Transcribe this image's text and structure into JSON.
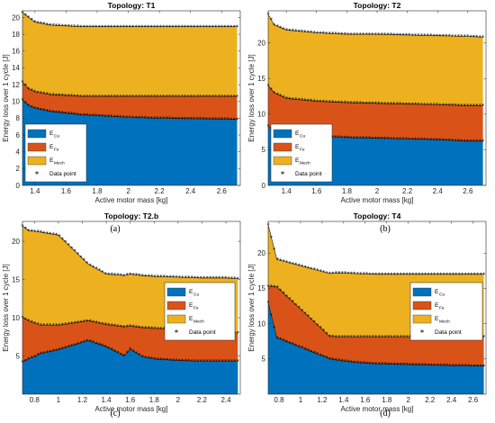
{
  "colors": {
    "cu": "#0072BD",
    "fe": "#D95319",
    "mech": "#EDB120"
  },
  "legend_items": [
    {
      "main": "E",
      "sub": "Cu"
    },
    {
      "main": "E",
      "sub": "Fe"
    },
    {
      "main": "E",
      "sub": "Mech"
    },
    {
      "main": "Data point",
      "sub": ""
    }
  ],
  "chart_data": [
    {
      "type": "area",
      "title": "Topology: T1",
      "caption": "(a)",
      "xlabel": "Active motor mass [kg]",
      "ylabel": "Energy loss over 1 cycle [J]",
      "xlim": [
        1.32,
        2.72
      ],
      "ylim": [
        0,
        20.8
      ],
      "xticks": [
        1.4,
        1.6,
        1.8,
        2,
        2.2,
        2.4,
        2.6
      ],
      "yticks": [
        0,
        2,
        4,
        6,
        8,
        10,
        12,
        14,
        16,
        18,
        20
      ],
      "legend_position": "bottom-left",
      "x": [
        1.32,
        1.36,
        1.4,
        1.5,
        1.6,
        1.7,
        1.8,
        1.9,
        2.0,
        2.2,
        2.4,
        2.6,
        2.7
      ],
      "series": [
        {
          "name": "E_Cu",
          "values": [
            10.2,
            9.5,
            9.2,
            8.8,
            8.6,
            8.4,
            8.3,
            8.2,
            8.1,
            8.0,
            7.95,
            7.9,
            7.85
          ]
        },
        {
          "name": "E_Fe",
          "values": [
            2.1,
            2.0,
            1.95,
            2.0,
            2.1,
            2.2,
            2.3,
            2.4,
            2.5,
            2.6,
            2.65,
            2.7,
            2.75
          ]
        },
        {
          "name": "E_Mech",
          "values": [
            8.3,
            8.5,
            8.3,
            8.3,
            8.3,
            8.3,
            8.3,
            8.3,
            8.3,
            8.3,
            8.3,
            8.3,
            8.3
          ]
        }
      ]
    },
    {
      "type": "area",
      "title": "Topology: T2",
      "caption": "(b)",
      "xlabel": "Active motor mass [kg]",
      "ylabel": "Energy loss over 1 cycle [J]",
      "xlim": [
        1.28,
        2.72
      ],
      "ylim": [
        0,
        24.5
      ],
      "xticks": [
        1.4,
        1.6,
        1.8,
        2,
        2.2,
        2.4,
        2.6
      ],
      "yticks": [
        0,
        5,
        10,
        15,
        20
      ],
      "legend_position": "bottom-left",
      "x": [
        1.28,
        1.32,
        1.4,
        1.6,
        1.8,
        2.0,
        2.2,
        2.4,
        2.6,
        2.7
      ],
      "series": [
        {
          "name": "E_Cu",
          "values": [
            8.3,
            7.6,
            7.2,
            6.9,
            6.7,
            6.6,
            6.5,
            6.4,
            6.2,
            6.2
          ]
        },
        {
          "name": "E_Fe",
          "values": [
            5.7,
            5.4,
            5.0,
            4.9,
            4.9,
            4.9,
            4.9,
            4.9,
            5.0,
            5.0
          ]
        },
        {
          "name": "E_Mech",
          "values": [
            10.0,
            9.5,
            9.6,
            9.6,
            9.6,
            9.7,
            9.7,
            9.7,
            9.7,
            9.6
          ]
        }
      ]
    },
    {
      "type": "area",
      "title": "Topology: T2.b",
      "caption": "(c)",
      "xlabel": "Active motor mass [kg]",
      "ylabel": "Energy loss over 1 cycle [J]",
      "xlim": [
        0.7,
        2.52
      ],
      "ylim": [
        0,
        22.6
      ],
      "xticks": [
        0.8,
        1,
        1.2,
        1.4,
        1.6,
        1.8,
        2,
        2.2,
        2.4
      ],
      "yticks": [
        5,
        10,
        15,
        20
      ],
      "legend_position": "right",
      "x": [
        0.7,
        0.75,
        0.8,
        0.85,
        1.0,
        1.25,
        1.4,
        1.5,
        1.55,
        1.6,
        1.7,
        1.8,
        2.0,
        2.2,
        2.4,
        2.5
      ],
      "series": [
        {
          "name": "E_Cu",
          "values": [
            4.2,
            4.6,
            4.9,
            5.3,
            5.8,
            7.0,
            6.2,
            5.4,
            5.0,
            5.9,
            4.9,
            4.6,
            4.4,
            4.3,
            4.3,
            4.3
          ]
        },
        {
          "name": "E_Fe",
          "values": [
            5.8,
            5.0,
            4.4,
            3.7,
            3.2,
            2.6,
            2.9,
            3.5,
            3.8,
            3.0,
            3.8,
            4.0,
            4.1,
            3.8,
            3.7,
            3.7
          ]
        },
        {
          "name": "E_Mech",
          "values": [
            12.0,
            11.8,
            12.0,
            12.2,
            11.8,
            7.4,
            6.6,
            6.7,
            6.7,
            6.8,
            6.8,
            6.8,
            6.8,
            7.1,
            7.2,
            7.1
          ]
        }
      ]
    },
    {
      "type": "area",
      "title": "Topology: T4",
      "caption": "(d)",
      "xlabel": "Active motor mass [kg]",
      "ylabel": "Energy loss over 1 cycle [J]",
      "xlim": [
        0.7,
        2.72
      ],
      "ylim": [
        0,
        24.5
      ],
      "xticks": [
        0.8,
        1,
        1.2,
        1.4,
        1.6,
        1.8,
        2,
        2.2,
        2.4,
        2.6
      ],
      "yticks": [
        5,
        10,
        15,
        20
      ],
      "legend_position": "right",
      "x": [
        0.7,
        0.78,
        1.27,
        1.35,
        1.5,
        1.7,
        2.0,
        2.3,
        2.6,
        2.7
      ],
      "series": [
        {
          "name": "E_Cu",
          "values": [
            13.0,
            8.0,
            5.0,
            4.8,
            4.5,
            4.3,
            4.2,
            4.1,
            4.0,
            4.0
          ]
        },
        {
          "name": "E_Fe",
          "values": [
            2.3,
            7.2,
            3.2,
            3.3,
            3.6,
            3.8,
            3.9,
            4.0,
            4.1,
            4.1
          ]
        },
        {
          "name": "E_Mech",
          "values": [
            8.7,
            3.9,
            8.9,
            9.1,
            9.0,
            8.9,
            8.9,
            8.9,
            8.9,
            8.9
          ]
        }
      ]
    }
  ]
}
